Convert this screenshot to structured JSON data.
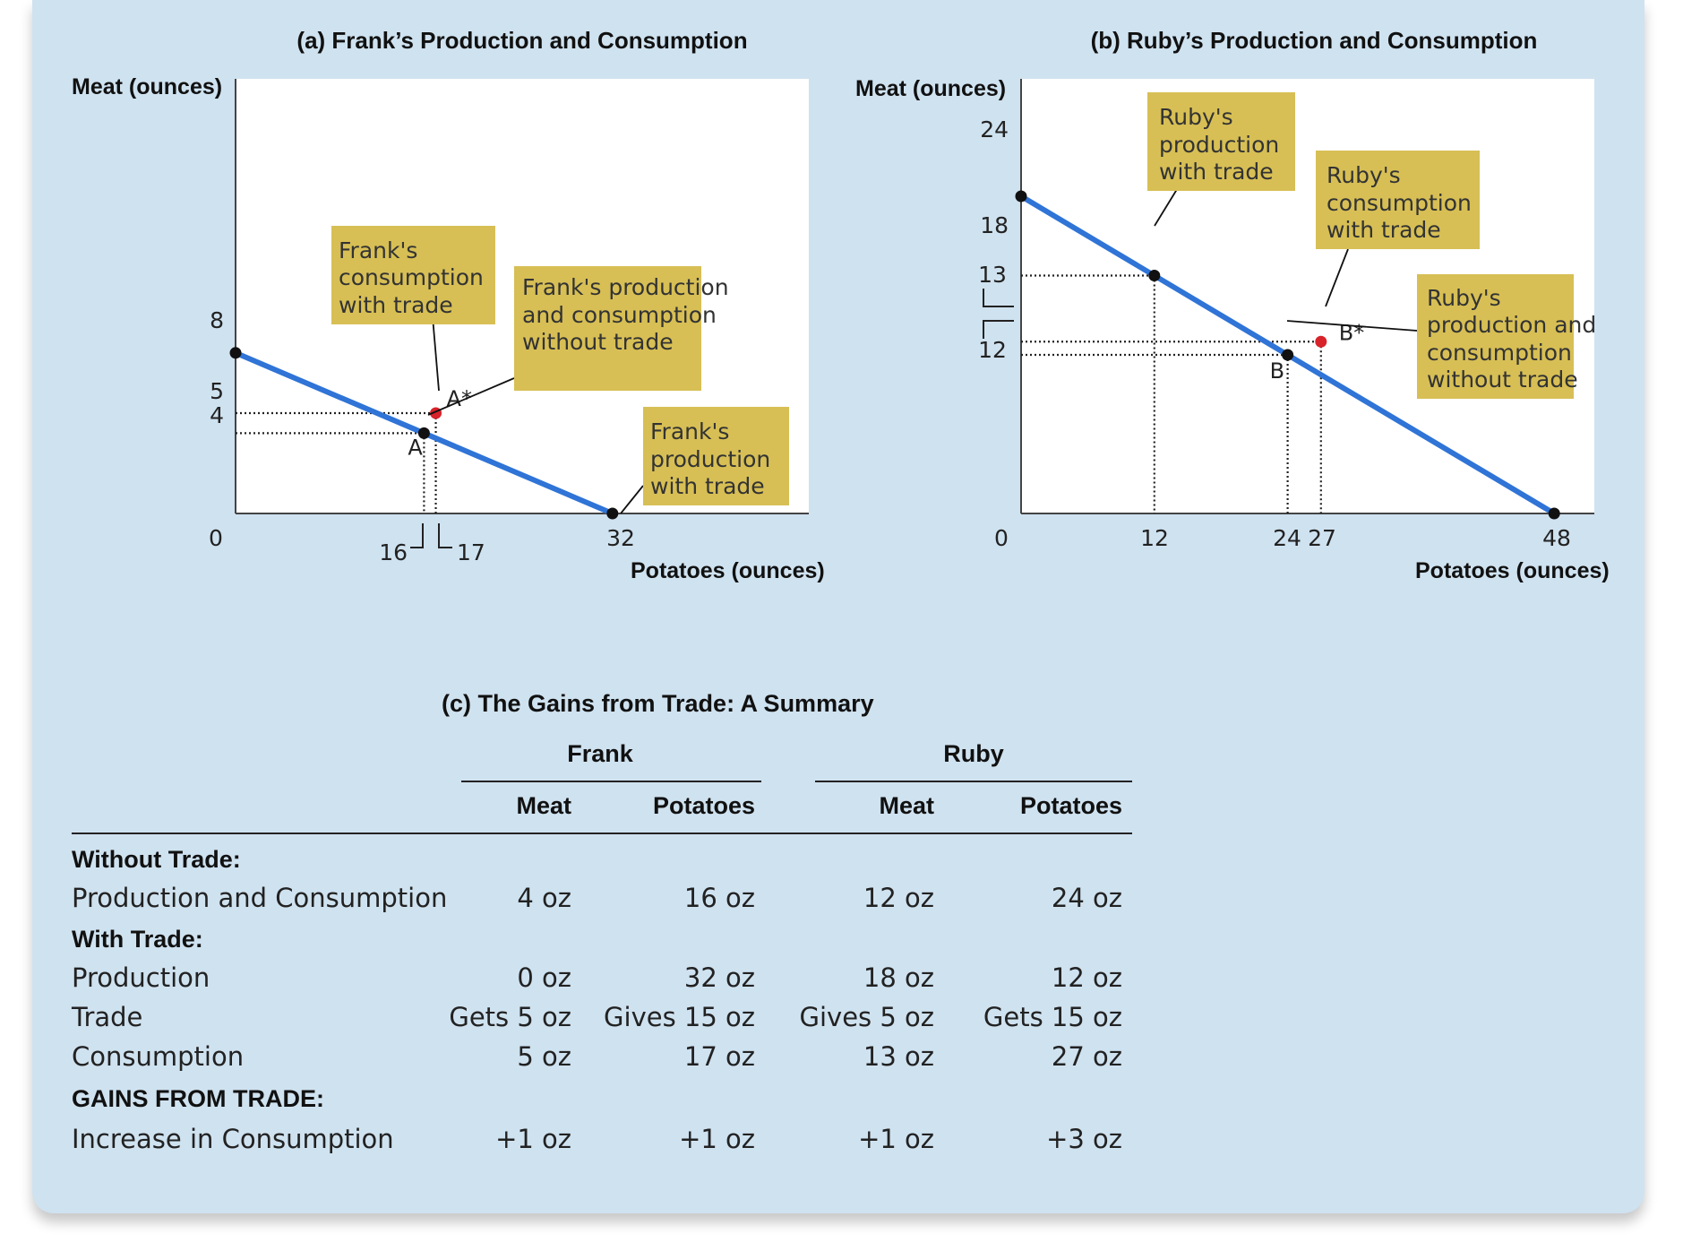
{
  "chart_data": [
    {
      "type": "line",
      "title": "(a) Frank’s Production and Consumption",
      "xlabel": "Potatoes (ounces)",
      "ylabel": "Meat (ounces)",
      "xlim": [
        0,
        46
      ],
      "ylim": [
        0,
        18
      ],
      "series": [
        {
          "x": [
            0,
            32
          ],
          "y": [
            8,
            0
          ],
          "color": "#2f74d6"
        }
      ],
      "x_ticks": [
        "0",
        "16",
        "17",
        "32"
      ],
      "y_ticks": [
        "8",
        "5",
        "4"
      ],
      "points": [
        {
          "label": "",
          "x": 0,
          "y": 8,
          "color": "#111111"
        },
        {
          "label": "",
          "x": 32,
          "y": 0,
          "color": "#111111"
        },
        {
          "label": "A",
          "x": 16,
          "y": 4,
          "color": "#111111"
        },
        {
          "label": "A*",
          "x": 17,
          "y": 5,
          "color": "#d8232a"
        }
      ],
      "annotations": [
        {
          "lines": [
            "Frank's",
            "consumption",
            "with trade"
          ]
        },
        {
          "lines": [
            "Frank's production",
            "and consumption",
            "without trade"
          ]
        },
        {
          "lines": [
            "Frank's",
            "production",
            "with trade"
          ]
        }
      ]
    },
    {
      "type": "line",
      "title": "(b) Ruby’s Production and Consumption",
      "xlabel": "Potatoes (ounces)",
      "ylabel": "Meat (ounces)",
      "xlim": [
        0,
        50
      ],
      "ylim": [
        0,
        27
      ],
      "series": [
        {
          "x": [
            0,
            48
          ],
          "y": [
            24,
            0
          ],
          "color": "#2f74d6"
        }
      ],
      "x_ticks": [
        "0",
        "12",
        "24",
        "27",
        "48"
      ],
      "y_ticks": [
        "24",
        "18",
        "13",
        "12"
      ],
      "points": [
        {
          "label": "",
          "x": 0,
          "y": 24,
          "color": "#111111"
        },
        {
          "label": "",
          "x": 48,
          "y": 0,
          "color": "#111111"
        },
        {
          "label": "",
          "x": 12,
          "y": 18,
          "color": "#111111"
        },
        {
          "label": "B",
          "x": 24,
          "y": 12,
          "color": "#111111"
        },
        {
          "label": "B*",
          "x": 27,
          "y": 13,
          "color": "#d8232a"
        }
      ],
      "annotations": [
        {
          "lines": [
            "Ruby's",
            "production",
            "with trade"
          ]
        },
        {
          "lines": [
            "Ruby's",
            "consumption",
            "with trade"
          ]
        },
        {
          "lines": [
            "Ruby's",
            "production and",
            "consumption",
            "without trade"
          ]
        }
      ]
    },
    {
      "type": "table",
      "title": "(c) The Gains from Trade: A Summary",
      "groups": [
        "Frank",
        "Ruby"
      ],
      "columns": [
        "Meat",
        "Potatoes",
        "Meat",
        "Potatoes"
      ],
      "rows": [
        {
          "label": "Without Trade:",
          "heading": true,
          "cells": []
        },
        {
          "label": "Production and Consumption",
          "cells": [
            "4 oz",
            "16 oz",
            "12 oz",
            "24 oz"
          ]
        },
        {
          "label": "With Trade:",
          "heading": true,
          "cells": []
        },
        {
          "label": "Production",
          "cells": [
            "0 oz",
            "32 oz",
            "18 oz",
            "12 oz"
          ]
        },
        {
          "label": "Trade",
          "cells": [
            "Gets 5 oz",
            "Gives 15 oz",
            "Gives 5 oz",
            "Gets 15 oz"
          ]
        },
        {
          "label": "Consumption",
          "cells": [
            "5 oz",
            "17 oz",
            "13 oz",
            "27 oz"
          ]
        },
        {
          "label": "GAINS FROM TRADE:",
          "heading": true,
          "cells": []
        },
        {
          "label": "Increase in Consumption",
          "cells": [
            "+1 oz",
            "+1 oz",
            "+1 oz",
            "+3 oz"
          ]
        }
      ]
    }
  ],
  "colors": {
    "panel": "#cfe2f0",
    "plot_bg": "#ffffff",
    "frontier": "#2f74d6",
    "callout": "#d7bf55",
    "trade_point": "#d8232a"
  }
}
